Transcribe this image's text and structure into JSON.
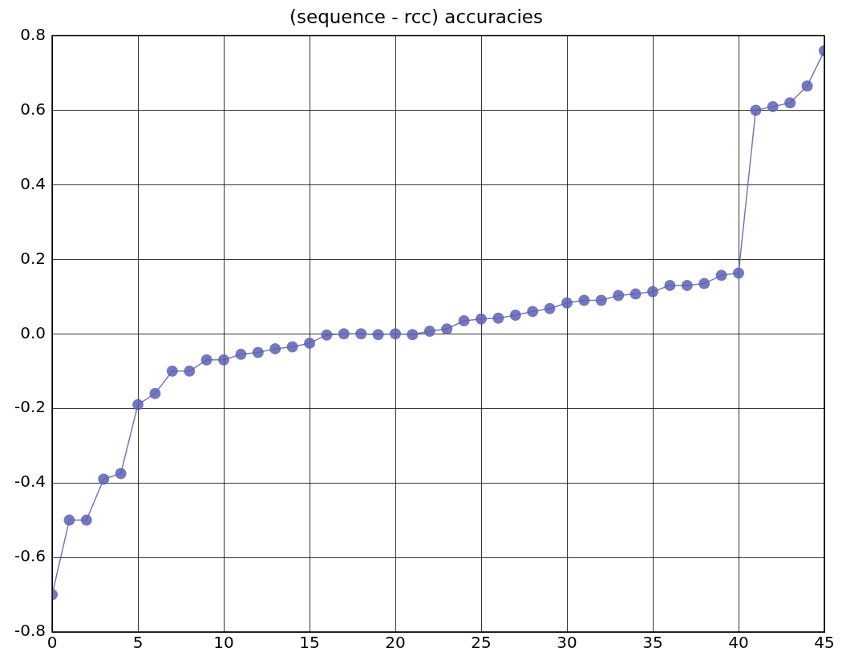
{
  "chart_data": {
    "type": "line",
    "title": "(sequence - rcc) accuracies",
    "x": [
      0,
      1,
      2,
      3,
      4,
      5,
      6,
      7,
      8,
      9,
      10,
      11,
      12,
      13,
      14,
      15,
      16,
      17,
      18,
      19,
      20,
      21,
      22,
      23,
      24,
      25,
      26,
      27,
      28,
      29,
      30,
      31,
      32,
      33,
      34,
      35,
      36,
      37,
      38,
      39,
      40,
      41,
      42,
      43,
      44,
      45
    ],
    "series": [
      {
        "color": "#5c60b4",
        "values": [
          -0.7,
          -0.5,
          -0.5,
          -0.39,
          -0.375,
          -0.19,
          -0.16,
          -0.1,
          -0.1,
          -0.07,
          -0.07,
          -0.055,
          -0.05,
          -0.04,
          -0.035,
          -0.025,
          -0.003,
          0.0,
          0.0,
          -0.002,
          0.0,
          -0.002,
          0.007,
          0.013,
          0.035,
          0.04,
          0.042,
          0.05,
          0.06,
          0.068,
          0.083,
          0.09,
          0.09,
          0.103,
          0.107,
          0.113,
          0.13,
          0.13,
          0.135,
          0.157,
          0.163,
          0.6,
          0.61,
          0.62,
          0.665,
          0.76
        ]
      }
    ],
    "xlim": [
      0,
      45
    ],
    "xticks": [
      0,
      5,
      10,
      15,
      20,
      25,
      30,
      35,
      40,
      45
    ],
    "ylim": [
      -0.8,
      0.8
    ],
    "yticks": [
      -0.8,
      -0.6,
      -0.4,
      -0.2,
      {
        "value": 0,
        "label": "0.0"
      },
      0.2,
      0.4,
      0.6,
      0.8
    ],
    "grid": true,
    "marker": "circle",
    "line_style": "solid",
    "legend": false
  }
}
